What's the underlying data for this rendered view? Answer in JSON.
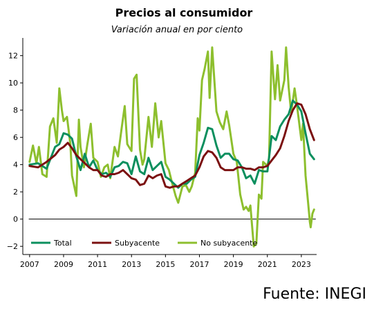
{
  "chart_data": {
    "type": "line",
    "title": "Precios al consumidor",
    "subtitle": "Variación anual en por ciento",
    "xlabel": "",
    "ylabel": "",
    "xlim": [
      2006.6,
      2023.9
    ],
    "ylim": [
      -2.6,
      13.3
    ],
    "x_ticks": [
      "2007",
      "2009",
      "2011",
      "2013",
      "2015",
      "2017",
      "2019",
      "2021",
      "2023"
    ],
    "y_ticks": [
      "12",
      "10",
      "8",
      "6",
      "4",
      "2",
      "0",
      "−2"
    ],
    "grid": false,
    "legend_position": "bottom",
    "series": [
      {
        "name": "Total",
        "color": "#0b8f5e",
        "points": [
          [
            2007.0,
            4.0
          ],
          [
            2007.5,
            4.1
          ],
          [
            2008.0,
            3.7
          ],
          [
            2008.5,
            5.3
          ],
          [
            2008.75,
            5.5
          ],
          [
            2009.0,
            6.3
          ],
          [
            2009.25,
            6.2
          ],
          [
            2009.5,
            5.9
          ],
          [
            2009.75,
            4.6
          ],
          [
            2010.0,
            3.6
          ],
          [
            2010.25,
            4.8
          ],
          [
            2010.5,
            3.8
          ],
          [
            2010.75,
            4.3
          ],
          [
            2011.0,
            3.6
          ],
          [
            2011.25,
            3.3
          ],
          [
            2011.5,
            3.4
          ],
          [
            2011.75,
            3.1
          ],
          [
            2012.0,
            3.8
          ],
          [
            2012.25,
            3.9
          ],
          [
            2012.5,
            4.2
          ],
          [
            2012.75,
            4.1
          ],
          [
            2013.0,
            3.3
          ],
          [
            2013.25,
            4.6
          ],
          [
            2013.5,
            3.5
          ],
          [
            2013.75,
            3.3
          ],
          [
            2014.0,
            4.5
          ],
          [
            2014.25,
            3.6
          ],
          [
            2014.5,
            3.9
          ],
          [
            2014.75,
            4.2
          ],
          [
            2015.0,
            3.1
          ],
          [
            2015.25,
            2.9
          ],
          [
            2015.5,
            2.6
          ],
          [
            2015.75,
            2.3
          ],
          [
            2016.0,
            2.6
          ],
          [
            2016.25,
            2.6
          ],
          [
            2016.5,
            2.9
          ],
          [
            2016.75,
            3.1
          ],
          [
            2017.0,
            4.7
          ],
          [
            2017.25,
            5.6
          ],
          [
            2017.5,
            6.7
          ],
          [
            2017.75,
            6.6
          ],
          [
            2018.0,
            5.4
          ],
          [
            2018.25,
            4.5
          ],
          [
            2018.5,
            4.8
          ],
          [
            2018.75,
            4.8
          ],
          [
            2019.0,
            4.4
          ],
          [
            2019.25,
            4.3
          ],
          [
            2019.5,
            3.8
          ],
          [
            2019.75,
            3.0
          ],
          [
            2020.0,
            3.2
          ],
          [
            2020.25,
            2.6
          ],
          [
            2020.5,
            3.6
          ],
          [
            2020.75,
            3.5
          ],
          [
            2021.0,
            3.5
          ],
          [
            2021.25,
            6.1
          ],
          [
            2021.5,
            5.8
          ],
          [
            2021.75,
            6.8
          ],
          [
            2022.0,
            7.3
          ],
          [
            2022.25,
            7.7
          ],
          [
            2022.5,
            8.7
          ],
          [
            2022.75,
            8.4
          ],
          [
            2023.0,
            7.9
          ],
          [
            2023.25,
            6.3
          ],
          [
            2023.5,
            4.8
          ],
          [
            2023.75,
            4.4
          ]
        ]
      },
      {
        "name": "Subyacente",
        "color": "#7b1010",
        "points": [
          [
            2007.0,
            3.9
          ],
          [
            2007.5,
            3.8
          ],
          [
            2008.0,
            4.2
          ],
          [
            2008.5,
            4.7
          ],
          [
            2008.75,
            5.1
          ],
          [
            2009.0,
            5.3
          ],
          [
            2009.25,
            5.6
          ],
          [
            2009.5,
            5.2
          ],
          [
            2009.75,
            4.7
          ],
          [
            2010.0,
            4.4
          ],
          [
            2010.25,
            4.1
          ],
          [
            2010.5,
            3.8
          ],
          [
            2010.75,
            3.6
          ],
          [
            2011.0,
            3.6
          ],
          [
            2011.25,
            3.2
          ],
          [
            2011.5,
            3.1
          ],
          [
            2011.75,
            3.3
          ],
          [
            2012.0,
            3.3
          ],
          [
            2012.25,
            3.4
          ],
          [
            2012.5,
            3.6
          ],
          [
            2012.75,
            3.3
          ],
          [
            2013.0,
            3.0
          ],
          [
            2013.25,
            2.9
          ],
          [
            2013.5,
            2.5
          ],
          [
            2013.75,
            2.6
          ],
          [
            2014.0,
            3.2
          ],
          [
            2014.25,
            3.0
          ],
          [
            2014.5,
            3.2
          ],
          [
            2014.75,
            3.3
          ],
          [
            2015.0,
            2.4
          ],
          [
            2015.25,
            2.3
          ],
          [
            2015.5,
            2.4
          ],
          [
            2015.75,
            2.4
          ],
          [
            2016.0,
            2.6
          ],
          [
            2016.25,
            2.8
          ],
          [
            2016.5,
            3.0
          ],
          [
            2016.75,
            3.2
          ],
          [
            2017.0,
            3.8
          ],
          [
            2017.25,
            4.6
          ],
          [
            2017.5,
            5.0
          ],
          [
            2017.75,
            4.9
          ],
          [
            2018.0,
            4.5
          ],
          [
            2018.25,
            3.8
          ],
          [
            2018.5,
            3.6
          ],
          [
            2018.75,
            3.6
          ],
          [
            2019.0,
            3.6
          ],
          [
            2019.25,
            3.8
          ],
          [
            2019.5,
            3.8
          ],
          [
            2019.75,
            3.7
          ],
          [
            2020.0,
            3.7
          ],
          [
            2020.25,
            3.6
          ],
          [
            2020.5,
            3.8
          ],
          [
            2020.75,
            3.8
          ],
          [
            2021.0,
            3.9
          ],
          [
            2021.25,
            4.3
          ],
          [
            2021.5,
            4.7
          ],
          [
            2021.75,
            5.2
          ],
          [
            2022.0,
            6.1
          ],
          [
            2022.25,
            7.2
          ],
          [
            2022.5,
            8.0
          ],
          [
            2022.75,
            8.5
          ],
          [
            2023.0,
            8.4
          ],
          [
            2023.25,
            7.7
          ],
          [
            2023.5,
            6.6
          ],
          [
            2023.75,
            5.8
          ]
        ]
      },
      {
        "name": "No subyacente",
        "color": "#8dbf2e",
        "points": [
          [
            2007.0,
            4.2
          ],
          [
            2007.2,
            5.4
          ],
          [
            2007.4,
            4.1
          ],
          [
            2007.55,
            5.3
          ],
          [
            2007.75,
            3.3
          ],
          [
            2008.0,
            3.1
          ],
          [
            2008.2,
            6.8
          ],
          [
            2008.4,
            7.4
          ],
          [
            2008.6,
            5.6
          ],
          [
            2008.75,
            9.6
          ],
          [
            2008.9,
            8.0
          ],
          [
            2009.0,
            7.2
          ],
          [
            2009.2,
            7.5
          ],
          [
            2009.4,
            5.5
          ],
          [
            2009.5,
            3.2
          ],
          [
            2009.75,
            1.7
          ],
          [
            2009.9,
            7.3
          ],
          [
            2010.0,
            5.3
          ],
          [
            2010.2,
            3.8
          ],
          [
            2010.4,
            5.5
          ],
          [
            2010.6,
            7.0
          ],
          [
            2010.75,
            4.5
          ],
          [
            2011.0,
            4.2
          ],
          [
            2011.2,
            3.1
          ],
          [
            2011.4,
            3.8
          ],
          [
            2011.6,
            4.0
          ],
          [
            2011.75,
            3.0
          ],
          [
            2012.0,
            5.3
          ],
          [
            2012.2,
            4.6
          ],
          [
            2012.4,
            6.5
          ],
          [
            2012.6,
            8.3
          ],
          [
            2012.75,
            5.5
          ],
          [
            2013.0,
            5.0
          ],
          [
            2013.15,
            10.3
          ],
          [
            2013.3,
            10.6
          ],
          [
            2013.5,
            5.1
          ],
          [
            2013.65,
            4.0
          ],
          [
            2013.75,
            4.4
          ],
          [
            2014.0,
            7.5
          ],
          [
            2014.2,
            5.3
          ],
          [
            2014.4,
            8.5
          ],
          [
            2014.6,
            6.0
          ],
          [
            2014.75,
            7.2
          ],
          [
            2015.0,
            4.1
          ],
          [
            2015.2,
            3.6
          ],
          [
            2015.4,
            2.6
          ],
          [
            2015.6,
            1.7
          ],
          [
            2015.75,
            1.2
          ],
          [
            2016.0,
            2.4
          ],
          [
            2016.2,
            2.5
          ],
          [
            2016.4,
            2.0
          ],
          [
            2016.55,
            2.4
          ],
          [
            2016.75,
            3.4
          ],
          [
            2016.9,
            7.4
          ],
          [
            2017.0,
            6.5
          ],
          [
            2017.15,
            10.2
          ],
          [
            2017.3,
            11.0
          ],
          [
            2017.5,
            12.3
          ],
          [
            2017.6,
            8.9
          ],
          [
            2017.75,
            12.6
          ],
          [
            2018.0,
            7.9
          ],
          [
            2018.2,
            7.1
          ],
          [
            2018.4,
            6.6
          ],
          [
            2018.6,
            7.9
          ],
          [
            2018.75,
            6.9
          ],
          [
            2019.0,
            4.8
          ],
          [
            2019.2,
            4.2
          ],
          [
            2019.4,
            1.8
          ],
          [
            2019.6,
            0.7
          ],
          [
            2019.75,
            0.9
          ],
          [
            2019.9,
            0.6
          ],
          [
            2020.0,
            1.0
          ],
          [
            2020.2,
            -2.0
          ],
          [
            2020.35,
            -1.8
          ],
          [
            2020.5,
            1.8
          ],
          [
            2020.65,
            1.5
          ],
          [
            2020.75,
            4.2
          ],
          [
            2021.0,
            3.9
          ],
          [
            2021.1,
            4.5
          ],
          [
            2021.25,
            12.3
          ],
          [
            2021.45,
            8.8
          ],
          [
            2021.6,
            11.3
          ],
          [
            2021.75,
            8.7
          ],
          [
            2022.0,
            10.2
          ],
          [
            2022.1,
            12.6
          ],
          [
            2022.25,
            9.7
          ],
          [
            2022.4,
            7.8
          ],
          [
            2022.6,
            9.6
          ],
          [
            2022.75,
            8.3
          ],
          [
            2023.0,
            5.8
          ],
          [
            2023.1,
            7.0
          ],
          [
            2023.25,
            3.2
          ],
          [
            2023.4,
            1.2
          ],
          [
            2023.5,
            -0.2
          ],
          [
            2023.55,
            -0.6
          ],
          [
            2023.65,
            0.4
          ],
          [
            2023.75,
            0.7
          ]
        ]
      }
    ]
  },
  "source_text": "Fuente: INEGI"
}
